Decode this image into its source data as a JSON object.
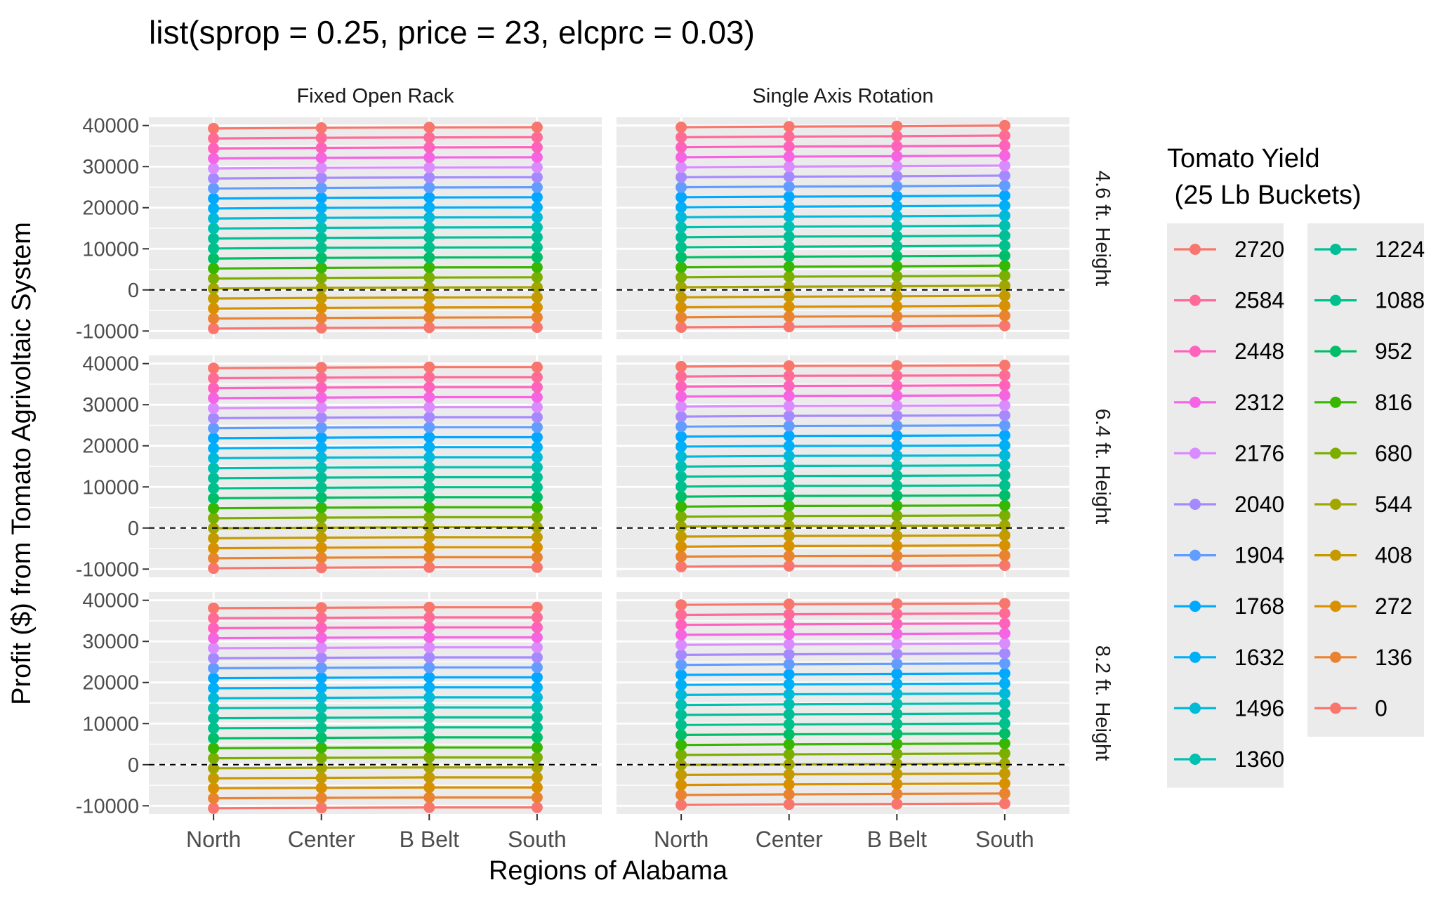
{
  "chart_data": {
    "type": "line",
    "title": "list(sprop = 0.25, price = 23, elcprc = 0.03)",
    "xlabel": "Regions of Alabama",
    "ylabel": "Profit ($) from Tomato Agrivoltaic System",
    "categories": [
      "North",
      "Center",
      "B Belt",
      "South"
    ],
    "y_ticks": [
      -10000,
      0,
      10000,
      20000,
      30000,
      40000
    ],
    "y_tick_labels": [
      "-10000",
      "0",
      "10000",
      "20000",
      "30000",
      "40000"
    ],
    "ylim": [
      -12000,
      42000
    ],
    "grid": true,
    "reference_line": {
      "y": 0,
      "style": "dashed"
    },
    "facet_columns": [
      "Fixed Open Rack",
      "Single Axis Rotation"
    ],
    "facet_rows": [
      "4.6 ft. Height",
      "6.4 ft. Height",
      "8.2 ft. Height"
    ],
    "legend": {
      "title": "Tomato Yield\n (25 Lb Buckets)",
      "title_lines": [
        "Tomato Yield",
        " (25 Lb Buckets)"
      ],
      "placement": "right",
      "entries": [
        "2720",
        "2584",
        "2448",
        "2312",
        "2176",
        "2040",
        "1904",
        "1768",
        "1632",
        "1496",
        "1360",
        "1224",
        "1088",
        "952",
        "816",
        "680",
        "544",
        "408",
        "272",
        "136",
        "0"
      ],
      "colors": [
        "#F8766D",
        "#FF6A98",
        "#FF62BC",
        "#F564E3",
        "#D98CFF",
        "#A58AFF",
        "#619CFF",
        "#00A9FF",
        "#00B0F6",
        "#00BAD8",
        "#00C0AF",
        "#00BF96",
        "#00C08B",
        "#00BE67",
        "#39B600",
        "#7CAE00",
        "#A3A500",
        "#C49A00",
        "#D89000",
        "#EA8331",
        "#F8766D"
      ]
    },
    "yields": [
      0,
      136,
      272,
      408,
      544,
      680,
      816,
      952,
      1088,
      1224,
      1360,
      1496,
      1632,
      1768,
      1904,
      2040,
      2176,
      2312,
      2448,
      2584,
      2720
    ],
    "series_colors": [
      "#F8766D",
      "#EA8331",
      "#D89000",
      "#C49A00",
      "#A3A500",
      "#7CAE00",
      "#39B600",
      "#00BE67",
      "#00C08B",
      "#00BF96",
      "#00C0AF",
      "#00BAD8",
      "#00B0F6",
      "#00A9FF",
      "#619CFF",
      "#A58AFF",
      "#D98CFF",
      "#F564E3",
      "#FF62BC",
      "#FF6A98",
      "#F8766D"
    ],
    "panels": [
      {
        "column": "Fixed Open Rack",
        "row": "4.6 ft. Height",
        "base": [
          -9400,
          -9250,
          -9150,
          -9100
        ],
        "slope": 17.9
      },
      {
        "column": "Single Axis Rotation",
        "row": "4.6 ft. Height",
        "base": [
          -9100,
          -8950,
          -8850,
          -8700
        ],
        "slope": 17.9
      },
      {
        "column": "Fixed Open Rack",
        "row": "6.4 ft. Height",
        "base": [
          -9800,
          -9650,
          -9550,
          -9550
        ],
        "slope": 17.9
      },
      {
        "column": "Single Axis Rotation",
        "row": "6.4 ft. Height",
        "base": [
          -9400,
          -9250,
          -9200,
          -9100
        ],
        "slope": 17.9
      },
      {
        "column": "Fixed Open Rack",
        "row": "8.2 ft. Height",
        "base": [
          -10600,
          -10500,
          -10400,
          -10400
        ],
        "slope": 17.9
      },
      {
        "column": "Single Axis Rotation",
        "row": "8.2 ft. Height",
        "base": [
          -9800,
          -9650,
          -9550,
          -9450
        ],
        "slope": 17.9
      }
    ]
  }
}
